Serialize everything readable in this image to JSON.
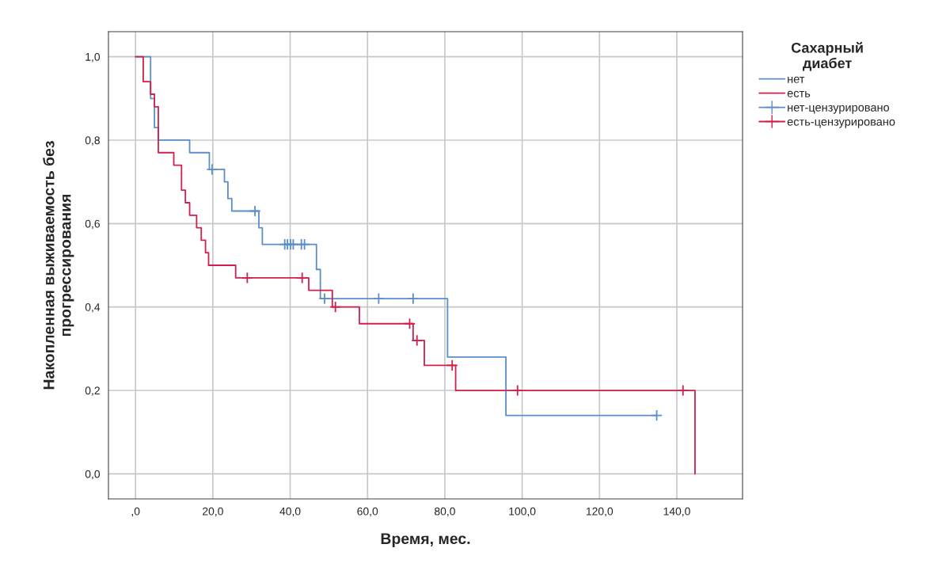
{
  "chart_data": {
    "type": "step",
    "xlabel": "Время, мес.",
    "ylabel": "Накопленная выживаемость без\nпрогрессирования",
    "legend_title": "Сахарный\nдиабет",
    "xlim": [
      -7,
      157
    ],
    "ylim": [
      -0.06,
      1.06
    ],
    "xticks": [
      {
        "value": 0,
        "label": ",0"
      },
      {
        "value": 20,
        "label": "20,0"
      },
      {
        "value": 40,
        "label": "40,0"
      },
      {
        "value": 60,
        "label": "60,0"
      },
      {
        "value": 80,
        "label": "80,0"
      },
      {
        "value": 100,
        "label": "100,0"
      },
      {
        "value": 120,
        "label": "120,0"
      },
      {
        "value": 140,
        "label": "140,0"
      }
    ],
    "yticks": [
      {
        "value": 0,
        "label": "0,0"
      },
      {
        "value": 0.2,
        "label": "0,2"
      },
      {
        "value": 0.4,
        "label": "0,4"
      },
      {
        "value": 0.6,
        "label": "0,6"
      },
      {
        "value": 0.8,
        "label": "0,8"
      },
      {
        "value": 1.0,
        "label": "1,0"
      }
    ],
    "grid": true,
    "legend": "top right",
    "series": [
      {
        "name": "нет",
        "color": "#5b8fc9",
        "x": [
          0,
          3.9,
          4.9,
          5.9,
          14.0,
          19.1,
          23.0,
          23.9,
          24.9,
          31.9,
          32.8,
          46.8,
          47.8,
          80.7,
          95.8,
          134.8
        ],
        "values": [
          1.0,
          0.9,
          0.83,
          0.8,
          0.77,
          0.73,
          0.7,
          0.66,
          0.63,
          0.59,
          0.55,
          0.49,
          0.42,
          0.28,
          0.14,
          0.14
        ]
      },
      {
        "name": "есть",
        "color": "#d1204c",
        "x": [
          0,
          2.0,
          3.9,
          4.9,
          5.9,
          9.9,
          11.9,
          12.9,
          14.0,
          15.8,
          17.0,
          18.1,
          18.9,
          25.9,
          44.8,
          50.9,
          57.9,
          71.8,
          74.7,
          82.8,
          144.7
        ],
        "values": [
          1.0,
          0.94,
          0.91,
          0.88,
          0.77,
          0.74,
          0.68,
          0.65,
          0.62,
          0.59,
          0.56,
          0.53,
          0.5,
          0.47,
          0.44,
          0.4,
          0.36,
          0.32,
          0.26,
          0.2,
          0.0
        ]
      },
      {
        "name": "нет-цензурировано",
        "type": "scatter",
        "marker": "cross",
        "color": "#5b8fc9",
        "x": [
          19.8,
          30.9,
          38.6,
          39.3,
          40.1,
          40.8,
          42.9,
          43.7,
          48.9,
          62.9,
          71.8,
          134.8
        ],
        "values": [
          0.73,
          0.63,
          0.55,
          0.55,
          0.55,
          0.55,
          0.55,
          0.55,
          0.42,
          0.42,
          0.42,
          0.14
        ]
      },
      {
        "name": "есть-цензурировано",
        "type": "scatter",
        "marker": "cross",
        "color": "#d1204c",
        "x": [
          28.9,
          43.1,
          51.7,
          70.9,
          72.8,
          81.9,
          98.8,
          141.6
        ],
        "values": [
          0.47,
          0.47,
          0.4,
          0.36,
          0.32,
          0.26,
          0.2,
          0.2
        ]
      }
    ]
  }
}
